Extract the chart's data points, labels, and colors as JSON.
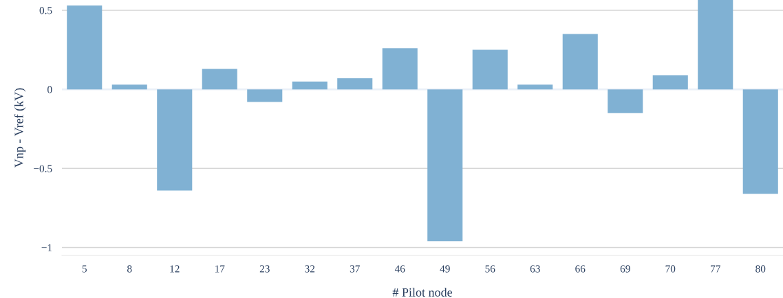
{
  "chart_data": {
    "type": "bar",
    "xlabel": "# Pilot node",
    "ylabel": "Vnp - Vref (kV)",
    "categories": [
      "5",
      "8",
      "12",
      "17",
      "23",
      "32",
      "37",
      "46",
      "49",
      "56",
      "63",
      "66",
      "69",
      "70",
      "77",
      "80"
    ],
    "values": [
      0.53,
      0.03,
      -0.64,
      0.13,
      -0.08,
      0.05,
      0.07,
      0.26,
      -0.96,
      0.25,
      0.03,
      0.35,
      -0.15,
      0.09,
      0.565,
      -0.66
    ],
    "color": "#80b1d3",
    "ylim": [
      -1.05,
      0.565
    ],
    "yticks": [
      {
        "value": -1,
        "label": "−1"
      },
      {
        "value": -0.5,
        "label": "−0.5"
      },
      0,
      0.5
    ],
    "grid": "y",
    "legend": false
  }
}
